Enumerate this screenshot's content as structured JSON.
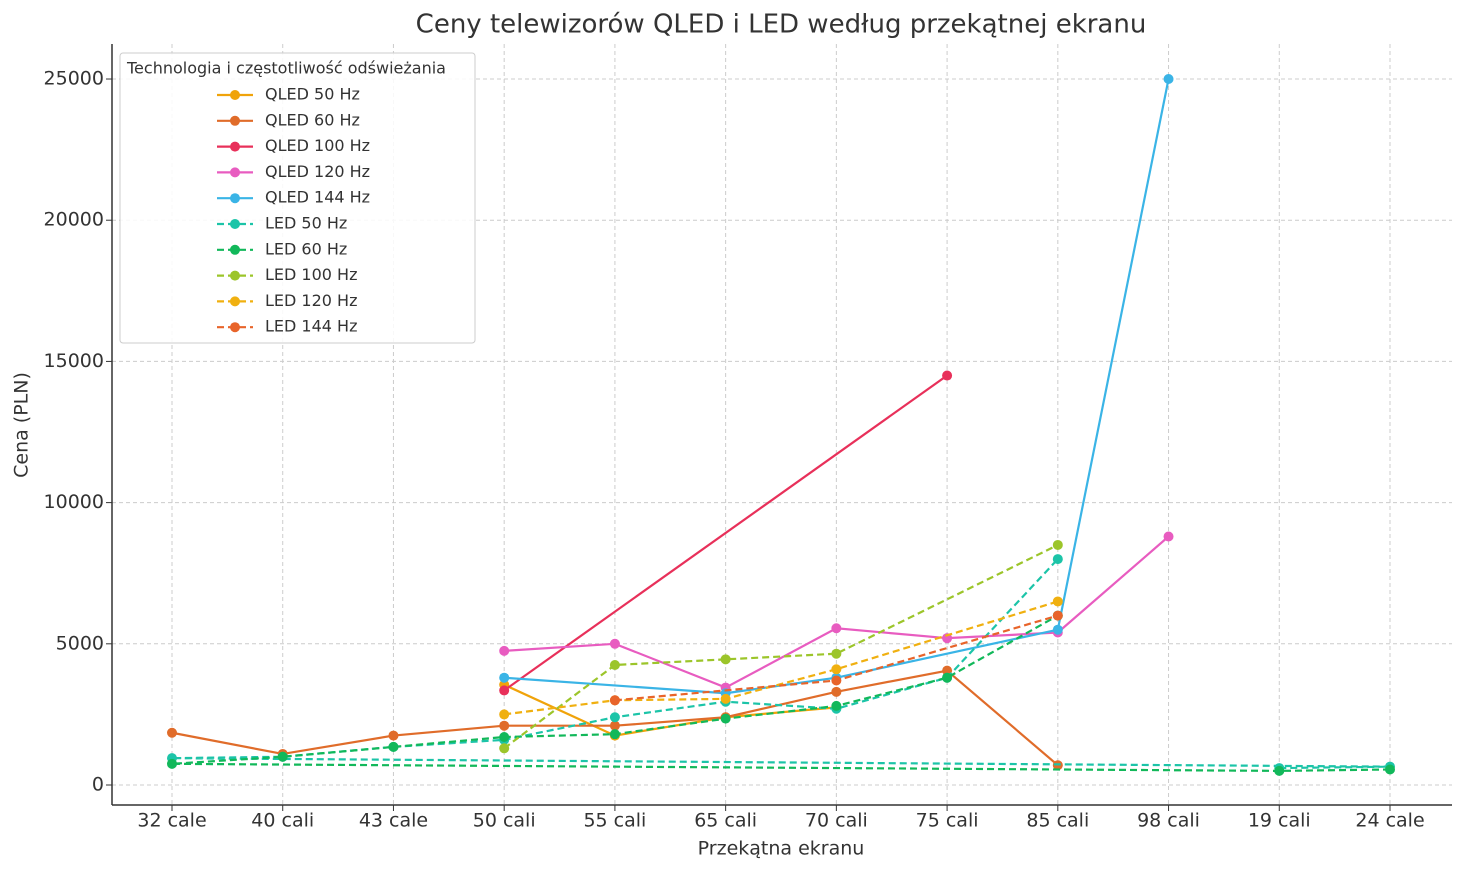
{
  "chart_data": {
    "type": "line",
    "title": "Ceny telewizorów QLED i LED według przekątnej ekranu",
    "x_label": "Przekątna ekranu",
    "y_label": "Cena (PLN)",
    "legend_title": "Technologia i częstotliwość odświeżania",
    "legend_position": "upper left",
    "grid": true,
    "categories": [
      "32 cale",
      "40 cali",
      "43 cale",
      "50 cali",
      "55 cali",
      "65 cali",
      "70 cali",
      "75 cali",
      "85 cali",
      "98 cali",
      "19 cali",
      "24 cale"
    ],
    "ylim": [
      -708,
      26240
    ],
    "yticks": [
      0,
      5000,
      10000,
      15000,
      20000,
      25000
    ],
    "series": [
      {
        "name": "QLED 50 Hz",
        "color": "#f0a30a",
        "linestyle": "solid",
        "x": [
          "50 cali",
          "55 cali",
          "65 cali",
          "70 cali"
        ],
        "values": [
          3550,
          1750,
          2400,
          2750
        ]
      },
      {
        "name": "QLED 60 Hz",
        "color": "#e06c2a",
        "linestyle": "solid",
        "x": [
          "32 cale",
          "40 cali",
          "43 cale",
          "50 cali",
          "55 cali",
          "65 cali",
          "70 cali",
          "75 cali",
          "85 cali"
        ],
        "values": [
          1850,
          1100,
          1750,
          2100,
          2100,
          2400,
          3300,
          4050,
          700
        ]
      },
      {
        "name": "QLED 100 Hz",
        "color": "#e8305a",
        "linestyle": "solid",
        "x": [
          "50 cali",
          "75 cali"
        ],
        "values": [
          3350,
          14500
        ]
      },
      {
        "name": "QLED 120 Hz",
        "color": "#e85cc0",
        "linestyle": "solid",
        "x": [
          "50 cali",
          "55 cali",
          "65 cali",
          "70 cali",
          "75 cali",
          "85 cali",
          "98 cali"
        ],
        "values": [
          4750,
          5000,
          3450,
          5550,
          5200,
          5400,
          8800
        ]
      },
      {
        "name": "QLED 144 Hz",
        "color": "#3ab4e6",
        "linestyle": "solid",
        "x": [
          "50 cali",
          "65 cali",
          "70 cali",
          "85 cali",
          "98 cali"
        ],
        "values": [
          3800,
          3250,
          3800,
          5500,
          25000
        ]
      },
      {
        "name": "LED 50 Hz",
        "color": "#1cc4a8",
        "linestyle": "dashed",
        "x": [
          "19 cali",
          "24 cale",
          "32 cale",
          "40 cali",
          "43 cale",
          "50 cali",
          "55 cali",
          "65 cali",
          "70 cali",
          "75 cali",
          "85 cali"
        ],
        "values": [
          600,
          650,
          950,
          1000,
          1350,
          1600,
          2400,
          2950,
          2700,
          3800,
          8000
        ]
      },
      {
        "name": "LED 60 Hz",
        "color": "#12b85a",
        "linestyle": "dashed",
        "x": [
          "24 cale",
          "19 cali",
          "32 cale",
          "40 cali",
          "43 cale",
          "50 cali",
          "55 cali",
          "65 cali",
          "70 cali",
          "75 cali",
          "85 cali"
        ],
        "values": [
          550,
          500,
          750,
          1000,
          1350,
          1700,
          1800,
          2350,
          2800,
          3800,
          6000
        ]
      },
      {
        "name": "LED 100 Hz",
        "color": "#9cc52a",
        "linestyle": "dashed",
        "x": [
          "50 cali",
          "55 cali",
          "65 cali",
          "70 cali",
          "85 cali"
        ],
        "values": [
          1300,
          4250,
          4450,
          4650,
          8500
        ]
      },
      {
        "name": "LED 120 Hz",
        "color": "#f0b010",
        "linestyle": "dashed",
        "x": [
          "50 cali",
          "55 cali",
          "65 cali",
          "70 cali",
          "85 cali"
        ],
        "values": [
          2500,
          3000,
          3050,
          4100,
          6500
        ]
      },
      {
        "name": "LED 144 Hz",
        "color": "#e8642a",
        "linestyle": "dashed",
        "x": [
          "55 cali",
          "70 cali",
          "85 cali"
        ],
        "values": [
          3000,
          3700,
          6000
        ]
      }
    ]
  }
}
